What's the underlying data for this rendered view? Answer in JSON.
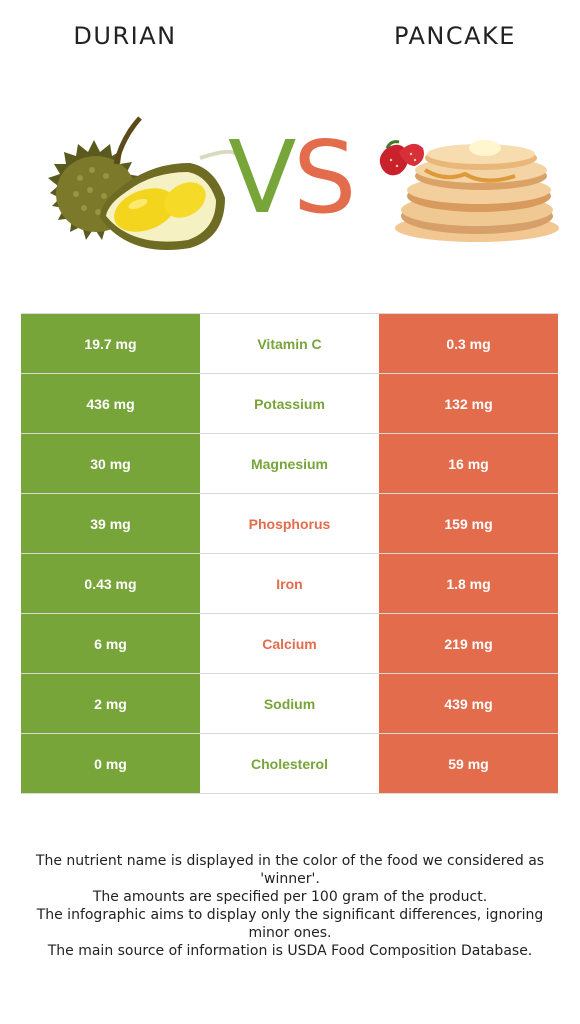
{
  "foods": {
    "left": {
      "name": "DURIAN",
      "color": "#77a53a"
    },
    "right": {
      "name": "PANCAKE",
      "color": "#e26c4c"
    }
  },
  "vs": {
    "v": "V",
    "s": "S"
  },
  "nutrients": [
    {
      "name": "Vitamin C",
      "left": "19.7 mg",
      "right": "0.3 mg",
      "winner": "left"
    },
    {
      "name": "Potassium",
      "left": "436 mg",
      "right": "132 mg",
      "winner": "left"
    },
    {
      "name": "Magnesium",
      "left": "30 mg",
      "right": "16 mg",
      "winner": "left"
    },
    {
      "name": "Phosphorus",
      "left": "39 mg",
      "right": "159 mg",
      "winner": "right"
    },
    {
      "name": "Iron",
      "left": "0.43 mg",
      "right": "1.8 mg",
      "winner": "right"
    },
    {
      "name": "Calcium",
      "left": "6 mg",
      "right": "219 mg",
      "winner": "right"
    },
    {
      "name": "Sodium",
      "left": "2 mg",
      "right": "439 mg",
      "winner": "left"
    },
    {
      "name": "Cholesterol",
      "left": "0 mg",
      "right": "59 mg",
      "winner": "left"
    }
  ],
  "footer": {
    "line1": "The nutrient name is displayed in the color of the food we considered as 'winner'.",
    "line2": "The amounts are specified per 100 gram of the product.",
    "line3": "The infographic aims to display only the significant differences, ignoring minor ones.",
    "line4": "The main source of information is USDA Food Composition Database."
  }
}
